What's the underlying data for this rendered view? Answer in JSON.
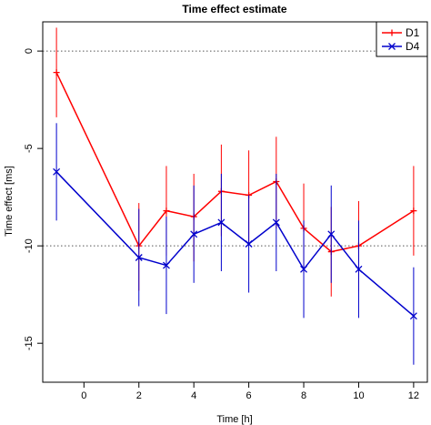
{
  "chart_data": {
    "type": "line",
    "title": "Time effect estimate",
    "xlabel": "Time [h]",
    "ylabel": "Time effect [ms]",
    "xlim": [
      -1.5,
      12.5
    ],
    "ylim": [
      -17,
      1.5
    ],
    "x_ticks": [
      0,
      2,
      4,
      6,
      8,
      10,
      12
    ],
    "y_ticks": [
      0,
      -5,
      -10,
      -15
    ],
    "reference_lines": [
      0,
      -10
    ],
    "grid": false,
    "legend_position": "top-right",
    "series": [
      {
        "name": "D1",
        "color": "#ff0000",
        "marker": "plus",
        "x": [
          -1,
          2,
          3,
          4,
          5,
          6,
          7,
          8,
          9,
          10,
          12
        ],
        "y": [
          -1.1,
          -10.0,
          -8.2,
          -8.5,
          -7.2,
          -7.4,
          -6.7,
          -9.1,
          -10.3,
          -10.0,
          -8.2
        ],
        "lower": [
          -3.4,
          -12.3,
          -10.5,
          -10.8,
          -9.5,
          -9.8,
          -9.1,
          -11.4,
          -12.6,
          -12.3,
          -10.5
        ],
        "upper": [
          1.2,
          -7.8,
          -5.9,
          -6.3,
          -4.8,
          -5.1,
          -4.4,
          -6.8,
          -8.0,
          -7.7,
          -5.9
        ]
      },
      {
        "name": "D4",
        "color": "#0000cc",
        "marker": "cross",
        "x": [
          -1,
          2,
          3,
          4,
          5,
          6,
          7,
          8,
          9,
          10,
          12
        ],
        "y": [
          -6.2,
          -10.6,
          -11.0,
          -9.4,
          -8.8,
          -9.9,
          -8.8,
          -11.2,
          -9.4,
          -11.2,
          -13.6
        ],
        "lower": [
          -8.7,
          -13.1,
          -13.5,
          -11.9,
          -11.3,
          -12.4,
          -11.3,
          -13.7,
          -11.9,
          -13.7,
          -16.1
        ],
        "upper": [
          -3.7,
          -8.1,
          -8.5,
          -6.9,
          -6.3,
          -7.4,
          -6.3,
          -8.7,
          -6.9,
          -8.7,
          -11.1
        ]
      }
    ]
  }
}
